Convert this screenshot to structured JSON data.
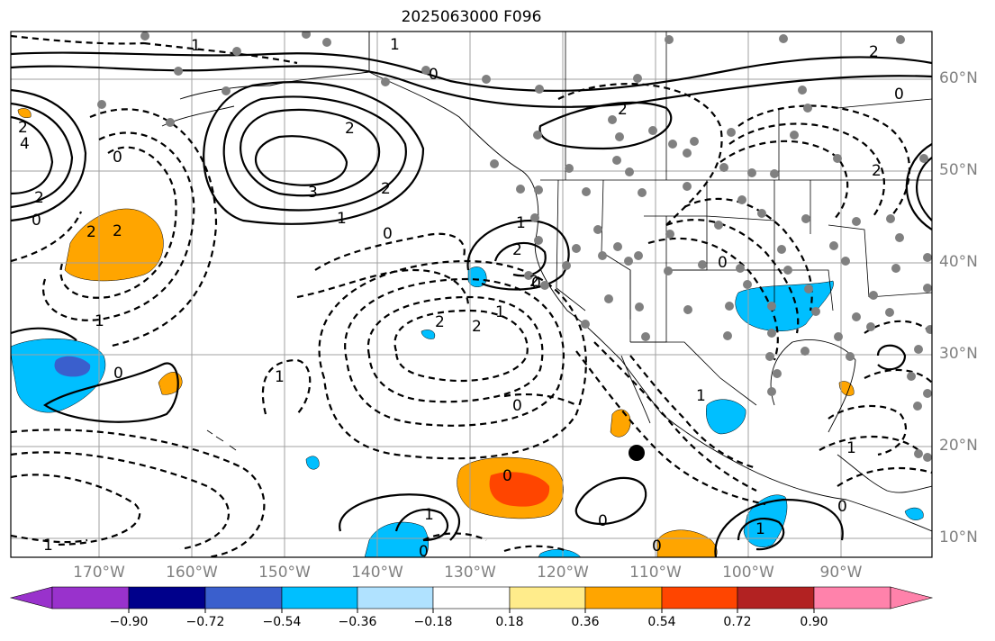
{
  "title": "2025063000 F096",
  "longitude_labels": [
    "170°W",
    "160°W",
    "150°W",
    "140°W",
    "130°W",
    "120°W",
    "110°W",
    "100°W",
    "90°W"
  ],
  "latitude_labels": [
    "60°N",
    "50°N",
    "40°N",
    "30°N",
    "20°N",
    "10°N"
  ],
  "colorbar": {
    "ticks": [
      "−0.90",
      "−0.72",
      "−0.54",
      "−0.36",
      "−0.18",
      "0.18",
      "0.36",
      "0.54",
      "0.72",
      "0.90"
    ],
    "colors": [
      "#9932cc",
      "#00008b",
      "#3a5fcd",
      "#00bfff",
      "#b0e2ff",
      "#ffffff",
      "#ffec8b",
      "#ffa500",
      "#ff4500",
      "#b22222",
      "#ff82ab"
    ]
  },
  "contour_labels": [
    "2",
    "1",
    "0",
    "0",
    "2",
    "3",
    "2",
    "2",
    "1",
    "0",
    "2",
    "2",
    "1",
    "2",
    "2",
    "1",
    "1",
    "2",
    "2",
    "0",
    "0",
    "1",
    "0",
    "2",
    "0",
    "0",
    "0",
    "1",
    "1",
    "0",
    "1",
    "0",
    "1",
    "0",
    "1",
    "0",
    "2",
    "2",
    "0",
    "1",
    "4"
  ],
  "colors": {
    "grid": "#a0a0a0",
    "station_dot": "#808080",
    "positive_fill": "#ffa500",
    "negative_fill": "#00bfff",
    "strong_positive": "#ff4500",
    "strong_negative": "#3a5fcd"
  }
}
